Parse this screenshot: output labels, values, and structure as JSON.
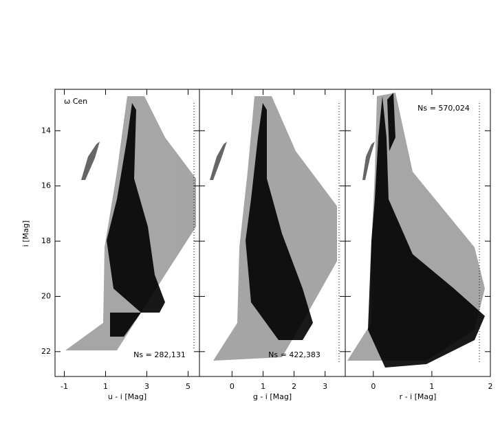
{
  "chart_data": [
    {
      "type": "scatter",
      "annotation": "ω Cen",
      "note": "Ns = 282,131",
      "xlabel": "u - i [Mag]",
      "ylabel": "i [Mag]",
      "xlim": [
        -1.45,
        5.55
      ],
      "xticks": [
        -1,
        1,
        3,
        5
      ],
      "ylim": [
        22.9,
        12.5
      ],
      "yticks": [
        14,
        16,
        18,
        20,
        22
      ]
    },
    {
      "type": "scatter",
      "note": "Ns = 422,383",
      "xlabel": "g - i [Mag]",
      "xlim": [
        -1.05,
        3.65
      ],
      "xticks": [
        0,
        1,
        2,
        3
      ],
      "ylim": [
        22.9,
        12.5
      ],
      "yticks": [
        14,
        16,
        18,
        20,
        22
      ]
    },
    {
      "type": "scatter",
      "note": "Ns = 570,024",
      "xlabel": "r - i [Mag]",
      "xlim": [
        -0.48,
        2.0
      ],
      "xticks": [
        0,
        1,
        2
      ],
      "ylim": [
        22.9,
        12.5
      ],
      "yticks": [
        14,
        16,
        18,
        20,
        22
      ]
    }
  ]
}
